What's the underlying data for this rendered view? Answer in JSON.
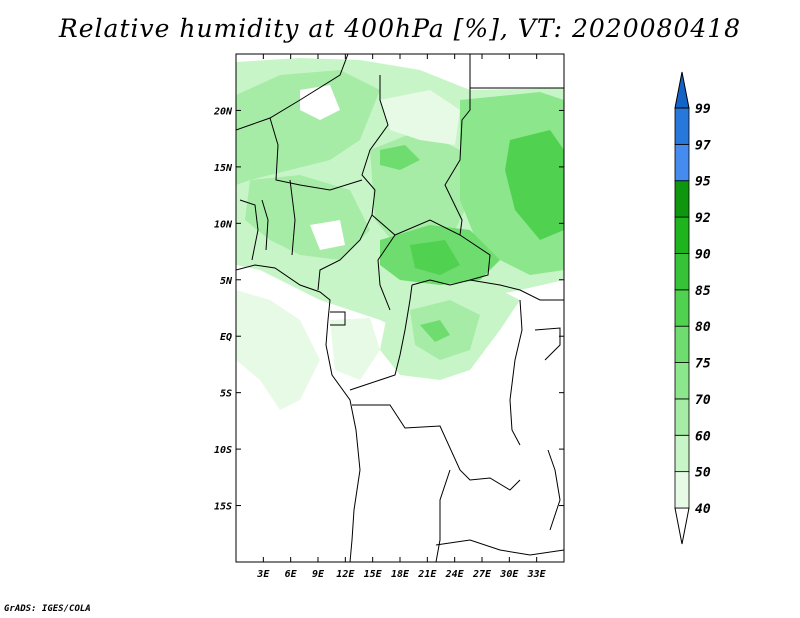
{
  "title": "Relative humidity at 400hPa [%], VT: 2020080418",
  "credit": "GrADS: IGES/COLA",
  "map": {
    "lon_range": [
      0,
      36
    ],
    "lat_range": [
      -20,
      25
    ],
    "lon_ticks": [
      {
        "value": 3,
        "label": "3E"
      },
      {
        "value": 6,
        "label": "6E"
      },
      {
        "value": 9,
        "label": "9E"
      },
      {
        "value": 12,
        "label": "12E"
      },
      {
        "value": 15,
        "label": "15E"
      },
      {
        "value": 18,
        "label": "18E"
      },
      {
        "value": 21,
        "label": "21E"
      },
      {
        "value": 24,
        "label": "24E"
      },
      {
        "value": 27,
        "label": "27E"
      },
      {
        "value": 30,
        "label": "30E"
      },
      {
        "value": 33,
        "label": "33E"
      }
    ],
    "lat_ticks": [
      {
        "value": 20,
        "label": "20N"
      },
      {
        "value": 15,
        "label": "15N"
      },
      {
        "value": 10,
        "label": "10N"
      },
      {
        "value": 5,
        "label": "5N"
      },
      {
        "value": 0,
        "label": "EQ"
      },
      {
        "value": -5,
        "label": "5S"
      },
      {
        "value": -10,
        "label": "10S"
      },
      {
        "value": -15,
        "label": "15S"
      }
    ]
  },
  "colorbar": {
    "levels": [
      "40",
      "50",
      "60",
      "70",
      "75",
      "80",
      "85",
      "90",
      "92",
      "95",
      "97",
      "99"
    ],
    "colors": [
      "#ffffff",
      "#e6fae6",
      "#c8f5c8",
      "#a6eca6",
      "#8ce68c",
      "#6edc6e",
      "#50d250",
      "#37c337",
      "#1eb41e",
      "#0f960f",
      "#468cf0",
      "#2878dc",
      "#1464c8"
    ]
  }
}
